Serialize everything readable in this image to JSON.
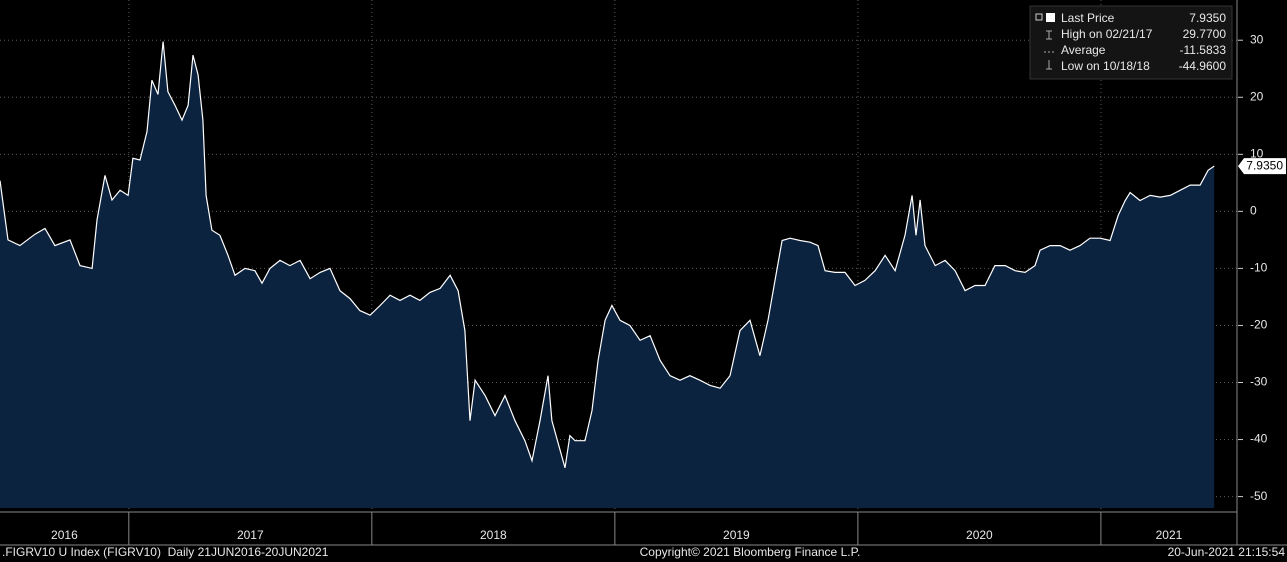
{
  "chart_data": {
    "type": "area",
    "x": [
      2016.47,
      2016.503,
      2016.552,
      2016.614,
      2016.655,
      2016.696,
      2016.758,
      2016.799,
      2016.849,
      2016.869,
      2016.902,
      2016.931,
      2016.964,
      2016.997,
      2017.017,
      2017.046,
      2017.075,
      2017.095,
      2017.12,
      2017.141,
      2017.161,
      2017.19,
      2017.219,
      2017.244,
      2017.264,
      2017.285,
      2017.305,
      2017.318,
      2017.342,
      2017.375,
      2017.408,
      2017.437,
      2017.478,
      2017.519,
      2017.548,
      2017.581,
      2017.622,
      2017.663,
      2017.705,
      2017.746,
      2017.787,
      2017.828,
      2017.869,
      2017.91,
      2017.951,
      2017.993,
      2018.034,
      2018.075,
      2018.116,
      2018.157,
      2018.198,
      2018.239,
      2018.281,
      2018.322,
      2018.355,
      2018.383,
      2018.404,
      2018.425,
      2018.466,
      2018.507,
      2018.548,
      2018.589,
      2018.63,
      2018.659,
      2018.692,
      2018.725,
      2018.741,
      2018.795,
      2018.815,
      2018.836,
      2018.877,
      2018.906,
      2018.931,
      2018.96,
      2018.988,
      2019.021,
      2019.062,
      2019.104,
      2019.145,
      2019.186,
      2019.227,
      2019.268,
      2019.309,
      2019.35,
      2019.392,
      2019.433,
      2019.474,
      2019.515,
      2019.556,
      2019.597,
      2019.63,
      2019.659,
      2019.688,
      2019.721,
      2019.762,
      2019.803,
      2019.836,
      2019.865,
      2019.906,
      2019.947,
      2019.988,
      2020.029,
      2020.071,
      2020.112,
      2020.153,
      2020.194,
      2020.223,
      2020.239,
      2020.256,
      2020.276,
      2020.318,
      2020.359,
      2020.4,
      2020.441,
      2020.482,
      2020.523,
      2020.564,
      2020.606,
      2020.647,
      2020.688,
      2020.729,
      2020.75,
      2020.791,
      2020.832,
      2020.873,
      2020.914,
      2020.955,
      2020.997,
      2021.038,
      2021.071,
      2021.1,
      2021.12,
      2021.161,
      2021.203,
      2021.244,
      2021.285,
      2021.326,
      2021.367,
      2021.408,
      2021.441,
      2021.466
    ],
    "series": [
      {
        "name": "Last Price",
        "color": "#ffffff",
        "fill": "#0c2340",
        "values": [
          5.4,
          -5,
          -6,
          -4,
          -3,
          -6,
          -5,
          -9.5,
          -10,
          -1.5,
          6.3,
          2,
          3.7,
          2.8,
          9.3,
          9,
          14,
          23,
          20.5,
          29.77,
          21,
          18.6,
          16,
          18.6,
          27.4,
          23.9,
          16,
          2.8,
          -3.3,
          -4.2,
          -7.7,
          -11.2,
          -10,
          -10.4,
          -12.6,
          -10,
          -8.6,
          -9.5,
          -8.6,
          -11.8,
          -10.7,
          -10,
          -13.9,
          -15.3,
          -17.4,
          -18.2,
          -16.5,
          -14.7,
          -15.6,
          -14.7,
          -15.6,
          -14.2,
          -13.5,
          -11.2,
          -13.9,
          -20.9,
          -36.7,
          -29.6,
          -32.3,
          -35.8,
          -32.3,
          -36.7,
          -40.2,
          -43.7,
          -36.7,
          -28.8,
          -36.7,
          -44.96,
          -39.3,
          -40.2,
          -40.2,
          -34.9,
          -26.1,
          -19.1,
          -16.5,
          -19.1,
          -20,
          -22.6,
          -21.8,
          -26.1,
          -28.8,
          -29.6,
          -28.8,
          -29.6,
          -30.5,
          -31,
          -28.8,
          -20.9,
          -19.1,
          -25.3,
          -19.1,
          -12.1,
          -5.1,
          -4.7,
          -5.1,
          -5.4,
          -6,
          -10.4,
          -10.7,
          -10.7,
          -13,
          -12.1,
          -10.4,
          -7.7,
          -10.4,
          -4.2,
          2.8,
          -4.2,
          2,
          -6,
          -9.5,
          -8.6,
          -10.4,
          -13.9,
          -13,
          -13,
          -9.5,
          -9.5,
          -10.4,
          -10.7,
          -9.5,
          -6.8,
          -6,
          -6,
          -6.8,
          -6,
          -4.7,
          -4.7,
          -5.1,
          -0.7,
          1.9,
          3.3,
          1.9,
          2.8,
          2.5,
          2.8,
          3.7,
          4.6,
          4.6,
          7.2,
          7.935
        ]
      }
    ],
    "xlim": [
      2016.47,
      2021.56
    ],
    "xticks": [
      2017,
      2018,
      2019,
      2020,
      2021
    ],
    "x_labels": [
      2016,
      2017,
      2018,
      2019,
      2020,
      2021
    ],
    "ylim": [
      -52,
      36
    ],
    "yticks": [
      30,
      20,
      10,
      0,
      -10,
      -20,
      -30,
      -40,
      -50
    ],
    "grid": true,
    "legend": [
      {
        "label": "Last Price",
        "value": 7.935,
        "value_label": "7.9350"
      },
      {
        "label": "High on 02/21/17",
        "value": 29.77,
        "value_label": "29.7700"
      },
      {
        "label": "Average",
        "value": -11.5833,
        "value_label": "-11.5833"
      },
      {
        "label": "Low on 10/18/18",
        "value": -44.96,
        "value_label": "-44.9600"
      }
    ],
    "footer": {
      "left": ".FIGRV10 U Index (FIGRV10)  Daily 21JUN2016-20JUN2021",
      "center": "Copyright© 2021 Bloomberg Finance L.P.",
      "right": "20-Jun-2021 21:15:54"
    }
  }
}
